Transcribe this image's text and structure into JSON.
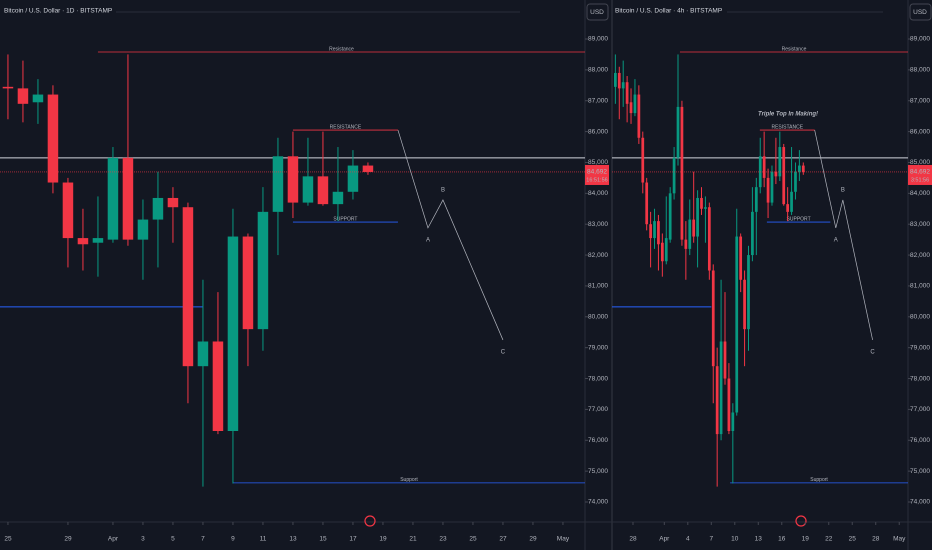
{
  "chart_data": [
    {
      "type": "candlestick",
      "title": "Bitcoin / U.S. Dollar · 1D · BITSTAMP",
      "currency": "USD",
      "x": [
        0,
        1,
        2,
        3,
        4,
        5,
        6,
        7,
        8,
        9,
        10,
        11,
        12,
        13,
        14,
        15,
        16,
        17,
        18,
        19,
        20,
        21,
        22,
        23,
        24
      ],
      "open": [
        87450,
        87400,
        86950,
        87200,
        84350,
        82550,
        82400,
        82500,
        85150,
        82500,
        83150,
        83850,
        83550,
        78400,
        79200,
        76300,
        82600,
        79600,
        83400,
        85200,
        83700,
        84550,
        83650,
        84050,
        84900
      ],
      "high": [
        88500,
        88300,
        87700,
        87500,
        84500,
        83500,
        83900,
        85500,
        88500,
        83800,
        84700,
        84200,
        83700,
        81200,
        80800,
        83500,
        82700,
        84200,
        85800,
        86000,
        85800,
        86000,
        85500,
        85400,
        85000
      ],
      "low": [
        86400,
        86300,
        86250,
        84000,
        81600,
        81500,
        81300,
        82400,
        82300,
        81200,
        81600,
        82400,
        77200,
        74500,
        76200,
        74600,
        78400,
        78900,
        82000,
        83200,
        83600,
        83600,
        83100,
        83800,
        84600
      ],
      "close": [
        87400,
        86900,
        87200,
        84350,
        82550,
        82350,
        82550,
        85150,
        82500,
        83150,
        83850,
        83550,
        78400,
        79200,
        76300,
        82600,
        79600,
        83400,
        85200,
        83700,
        84550,
        83650,
        84050,
        84900,
        84692
      ],
      "last_price_label": "84,692",
      "countdown": "16:51:56",
      "up_color": "#089981",
      "down_color": "#f23645",
      "xlim": [
        -0.53,
        38.47
      ],
      "ylim": [
        74000,
        89000
      ],
      "xticks": [
        {
          "value": 0,
          "label": "25"
        },
        {
          "value": 4,
          "label": "29"
        },
        {
          "value": 7,
          "label": "Apr"
        },
        {
          "value": 9,
          "label": "3"
        },
        {
          "value": 11,
          "label": "5"
        },
        {
          "value": 13,
          "label": "7"
        },
        {
          "value": 15,
          "label": "9"
        },
        {
          "value": 17,
          "label": "11"
        },
        {
          "value": 19,
          "label": "13"
        },
        {
          "value": 21,
          "label": "15"
        },
        {
          "value": 23,
          "label": "17"
        },
        {
          "value": 25,
          "label": "19"
        },
        {
          "value": 27,
          "label": "21"
        },
        {
          "value": 29,
          "label": "23"
        },
        {
          "value": 31,
          "label": "25"
        },
        {
          "value": 33,
          "label": "27"
        },
        {
          "value": 35,
          "label": "29"
        },
        {
          "value": 37,
          "label": "May"
        }
      ],
      "yticks": [
        {
          "value": 74000,
          "label": "74,000"
        },
        {
          "value": 75000,
          "label": "75,000"
        },
        {
          "value": 76000,
          "label": "76,000"
        },
        {
          "value": 77000,
          "label": "77,000"
        },
        {
          "value": 78000,
          "label": "78,000"
        },
        {
          "value": 79000,
          "label": "79,000"
        },
        {
          "value": 80000,
          "label": "80,000"
        },
        {
          "value": 81000,
          "label": "81,000"
        },
        {
          "value": 82000,
          "label": "82,000"
        },
        {
          "value": 83000,
          "label": "83,000"
        },
        {
          "value": 84000,
          "label": "84,000"
        },
        {
          "value": 85000,
          "label": "85,000"
        },
        {
          "value": 86000,
          "label": "86,000"
        },
        {
          "value": 87000,
          "label": "87,000"
        },
        {
          "value": 88000,
          "label": "88,000"
        },
        {
          "value": 89000,
          "label": "89,000"
        }
      ],
      "levels": [
        {
          "label": "Resistance",
          "price": 88580,
          "from": 6,
          "color": "#f23645"
        },
        {
          "label": "Support",
          "price": 74620,
          "from": 15,
          "color": "#2962ff"
        },
        {
          "price": 80320,
          "to": 13,
          "color": "#2962ff"
        },
        {
          "price": 85150,
          "color": "#d1d4dc"
        },
        {
          "label": "RESISTANCE",
          "price": 86050,
          "from": 19,
          "to": 26,
          "color": "#f23645"
        },
        {
          "label": "SUPPORT",
          "price": 83070,
          "from": 19,
          "to": 26,
          "color": "#2962ff"
        }
      ],
      "projection": {
        "x": [
          26,
          28,
          29,
          33
        ],
        "price": [
          86050,
          82880,
          83785,
          79250
        ],
        "labels": [
          null,
          "A",
          "B",
          "C"
        ]
      }
    },
    {
      "type": "candlestick",
      "title": "Bitcoin / U.S. Dollar · 4h · BITSTAMP",
      "currency": "USD",
      "x": [
        0.75,
        1.25,
        1.75,
        2.25,
        2.75,
        3.25,
        3.75,
        4.25,
        4.75,
        5.25,
        5.75,
        6.25,
        6.75,
        7.25,
        7.75,
        8.25,
        8.75,
        9.25,
        9.75,
        10.25,
        10.75,
        11.25,
        11.75,
        12.25,
        12.75,
        13.25,
        13.75,
        14.25,
        14.75,
        15.25,
        15.75,
        16.25,
        16.75,
        17.25,
        17.75,
        18.25,
        18.75,
        19.25,
        19.75,
        20.25,
        20.75,
        21.25,
        21.75,
        22.25,
        22.75,
        23.25,
        23.75,
        24.25,
        24.75
      ],
      "open": [
        87450,
        87900,
        87400,
        87600,
        86950,
        86600,
        87200,
        85800,
        84350,
        83000,
        82550,
        83100,
        82400,
        81800,
        82500,
        84000,
        85150,
        86800,
        82500,
        82200,
        83150,
        82600,
        83850,
        83500,
        83550,
        81500,
        78400,
        76200,
        79200,
        78000,
        76300,
        76900,
        82600,
        81200,
        79600,
        82000,
        83400,
        84200,
        85200,
        84500,
        83700,
        84700,
        84550,
        85500,
        83650,
        83400,
        84050,
        84700,
        84900
      ],
      "high": [
        88500,
        88100,
        88300,
        87800,
        87400,
        87700,
        87500,
        86000,
        84500,
        83400,
        83500,
        83300,
        82700,
        83900,
        84200,
        85500,
        88500,
        87000,
        83100,
        83800,
        84700,
        84100,
        84200,
        83900,
        83700,
        81700,
        79000,
        81200,
        80800,
        78500,
        77200,
        83500,
        82700,
        81500,
        82300,
        84200,
        84500,
        85800,
        86000,
        84800,
        84900,
        85800,
        86000,
        85600,
        84200,
        85500,
        85000,
        85400,
        85000
      ],
      "low": [
        86900,
        86400,
        86800,
        86300,
        86250,
        86500,
        85600,
        84000,
        82800,
        81600,
        82200,
        81500,
        81300,
        81700,
        82400,
        83800,
        84900,
        82300,
        81200,
        82000,
        82400,
        81600,
        83300,
        82400,
        81200,
        77200,
        74500,
        76000,
        77800,
        76200,
        74600,
        76800,
        80800,
        78400,
        78900,
        81800,
        82000,
        84000,
        84200,
        83200,
        83600,
        84300,
        84400,
        83600,
        83100,
        83300,
        83800,
        84400,
        84600
      ],
      "close": [
        87900,
        87400,
        87600,
        86900,
        86600,
        87200,
        85800,
        84350,
        83000,
        82550,
        83100,
        82350,
        81800,
        82550,
        84000,
        85150,
        86800,
        82500,
        82200,
        83150,
        82600,
        83850,
        83500,
        83550,
        81500,
        78400,
        76200,
        79200,
        78000,
        76300,
        76900,
        82600,
        81200,
        79600,
        82000,
        83400,
        84200,
        85200,
        84500,
        83700,
        84700,
        84550,
        85500,
        83650,
        83400,
        84050,
        84700,
        84900,
        84692
      ],
      "last_price_label": "84,692",
      "countdown": "3:51:56",
      "up_color": "#089981",
      "down_color": "#f23645",
      "xlim": [
        0.32,
        38.12
      ],
      "ylim": [
        74000,
        89000
      ],
      "xticks": [
        {
          "value": 3,
          "label": "28"
        },
        {
          "value": 7,
          "label": "Apr"
        },
        {
          "value": 10,
          "label": "4"
        },
        {
          "value": 13,
          "label": "7"
        },
        {
          "value": 16,
          "label": "10"
        },
        {
          "value": 19,
          "label": "13"
        },
        {
          "value": 22,
          "label": "16"
        },
        {
          "value": 25,
          "label": "19"
        },
        {
          "value": 28,
          "label": "22"
        },
        {
          "value": 31,
          "label": "25"
        },
        {
          "value": 34,
          "label": "28"
        },
        {
          "value": 37,
          "label": "May"
        }
      ],
      "yticks": [
        {
          "value": 74000,
          "label": "74,000"
        },
        {
          "value": 75000,
          "label": "75,000"
        },
        {
          "value": 76000,
          "label": "76,000"
        },
        {
          "value": 77000,
          "label": "77,000"
        },
        {
          "value": 78000,
          "label": "78,000"
        },
        {
          "value": 79000,
          "label": "79,000"
        },
        {
          "value": 80000,
          "label": "80,000"
        },
        {
          "value": 81000,
          "label": "81,000"
        },
        {
          "value": 82000,
          "label": "82,000"
        },
        {
          "value": 83000,
          "label": "83,000"
        },
        {
          "value": 84000,
          "label": "84,000"
        },
        {
          "value": 85000,
          "label": "85,000"
        },
        {
          "value": 86000,
          "label": "86,000"
        },
        {
          "value": 87000,
          "label": "87,000"
        },
        {
          "value": 88000,
          "label": "88,000"
        },
        {
          "value": 89000,
          "label": "89,000"
        }
      ],
      "levels": [
        {
          "label": "Resistance",
          "price": 88580,
          "from": 9,
          "color": "#f23645"
        },
        {
          "label": "Support",
          "price": 74620,
          "from": 15.4,
          "color": "#2962ff"
        },
        {
          "price": 80320,
          "to": 13,
          "color": "#2962ff"
        },
        {
          "price": 85150,
          "color": "#d1d4dc"
        },
        {
          "label": "RESISTANCE",
          "price": 86050,
          "from": 19.2,
          "to": 26.2,
          "color": "#f23645"
        },
        {
          "label": "SUPPORT",
          "price": 83070,
          "from": 20.1,
          "to": 28.2,
          "color": "#2962ff"
        }
      ],
      "projection": {
        "x": [
          26.2,
          28.9,
          29.8,
          33.6
        ],
        "price": [
          86050,
          82880,
          83785,
          79250
        ],
        "labels": [
          null,
          "A",
          "B",
          "C"
        ]
      },
      "annotation": {
        "text": "Triple Top In Making!",
        "x": 22.8,
        "price": 86570
      }
    }
  ]
}
